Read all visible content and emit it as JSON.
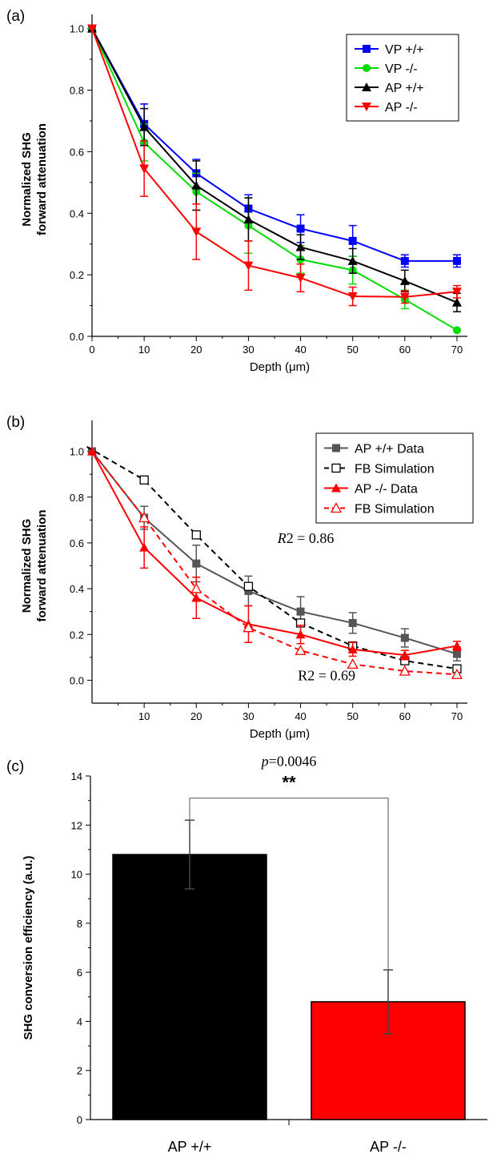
{
  "chart_data": [
    {
      "panel_label": "(a)",
      "type": "line",
      "xlabel": "Depth (μm)",
      "ylabel_line1": "Normalized SHG",
      "ylabel_line2": "forward attenuation",
      "xlim": [
        0,
        72
      ],
      "ylim": [
        0,
        1.02
      ],
      "xticks": [
        "0",
        "10",
        "20",
        "30",
        "40",
        "50",
        "60",
        "70"
      ],
      "yticks": [
        "0.0",
        "0.2",
        "0.4",
        "0.6",
        "0.8",
        "1.0"
      ],
      "legend_position": "top-right",
      "x": [
        0,
        10,
        20,
        30,
        40,
        50,
        60,
        70
      ],
      "series": [
        {
          "name": "VP +/+",
          "color": "#0000ff",
          "marker": "square",
          "dash": false,
          "values": [
            1.0,
            0.69,
            0.53,
            0.415,
            0.35,
            0.31,
            0.245,
            0.245
          ],
          "errors": [
            0,
            0.065,
            0.045,
            0.045,
            0.045,
            0.05,
            0.02,
            0.02
          ]
        },
        {
          "name": "VP -/-",
          "color": "#00dd00",
          "marker": "circle",
          "dash": false,
          "values": [
            1.0,
            0.63,
            0.47,
            0.36,
            0.25,
            0.215,
            0.12,
            0.02
          ],
          "errors": [
            0,
            0.06,
            0.06,
            0.09,
            0.045,
            0.045,
            0.03,
            0
          ]
        },
        {
          "name": "AP +/+",
          "color": "#000000",
          "marker": "triangle-up",
          "dash": false,
          "values": [
            1.0,
            0.68,
            0.49,
            0.38,
            0.29,
            0.245,
            0.18,
            0.11
          ],
          "errors": [
            0,
            0.06,
            0.08,
            0.07,
            0.04,
            0.04,
            0.035,
            0.03
          ]
        },
        {
          "name": "AP -/-",
          "color": "#ff0000",
          "marker": "triangle-down",
          "dash": false,
          "values": [
            1.0,
            0.545,
            0.34,
            0.23,
            0.19,
            0.13,
            0.128,
            0.145
          ],
          "errors": [
            0,
            0.09,
            0.09,
            0.08,
            0.045,
            0.03,
            0.02,
            0.02
          ]
        }
      ]
    },
    {
      "panel_label": "(b)",
      "type": "line",
      "xlabel": "Depth (μm)",
      "ylabel_line1": "Normalized SHG",
      "ylabel_line2": "forward attenuation",
      "xlim": [
        0,
        72
      ],
      "ylim": [
        -0.1,
        1.1
      ],
      "xticks": [
        "10",
        "20",
        "30",
        "40",
        "50",
        "60",
        "70"
      ],
      "yticks": [
        "0.0",
        "0.2",
        "0.4",
        "0.6",
        "0.8",
        "1.0"
      ],
      "legend_position": "top-right",
      "annotations": [
        {
          "prefix": "R",
          "text": "2 = 0.86",
          "x": 41,
          "y": 0.6,
          "italic": true
        },
        {
          "prefix": "R",
          "text": "2 = 0.69",
          "x": 45,
          "y": 0.0,
          "italic": false
        }
      ],
      "series": [
        {
          "name": "AP +/+ Data",
          "color": "#555555",
          "marker": "square-filled",
          "dash": false,
          "x": [
            0,
            10,
            20,
            30,
            40,
            50,
            60,
            70
          ],
          "values": [
            1.0,
            0.71,
            0.51,
            0.39,
            0.3,
            0.25,
            0.185,
            0.115
          ],
          "errors": [
            0,
            0.05,
            0.08,
            0.065,
            0.065,
            0.045,
            0.04,
            0.03
          ]
        },
        {
          "name": "FB Simulation",
          "color": "#000000",
          "marker": "square-open",
          "dash": true,
          "x": [
            -1,
            10,
            20,
            30,
            40,
            50,
            60,
            70
          ],
          "values": [
            1.02,
            0.875,
            0.635,
            0.41,
            0.25,
            0.15,
            0.085,
            0.05
          ],
          "errors": [
            0,
            0,
            0,
            0,
            0,
            0,
            0,
            0
          ]
        },
        {
          "name": "AP -/- Data",
          "color": "#ff0000",
          "marker": "triangle-filled",
          "dash": false,
          "x": [
            0,
            10,
            20,
            30,
            40,
            50,
            60,
            70
          ],
          "values": [
            1.0,
            0.58,
            0.36,
            0.245,
            0.2,
            0.135,
            0.11,
            0.15
          ],
          "errors": [
            0,
            0.09,
            0.09,
            0.08,
            0.04,
            0.03,
            0.02,
            0.02
          ]
        },
        {
          "name": "FB Simulation",
          "color": "#ff0000",
          "marker": "triangle-open",
          "dash": true,
          "x": [
            0,
            10,
            20,
            30,
            40,
            50,
            60,
            70
          ],
          "values": [
            1.0,
            0.71,
            0.4,
            0.23,
            0.13,
            0.07,
            0.04,
            0.025
          ],
          "errors": [
            0,
            0,
            0,
            0,
            0,
            0,
            0,
            0
          ]
        }
      ]
    },
    {
      "panel_label": "(c)",
      "type": "bar",
      "ylabel": "SHG conversion efficiency (a.u.)",
      "ylim": [
        0,
        14
      ],
      "yticks": [
        "0",
        "2",
        "4",
        "6",
        "8",
        "10",
        "12",
        "14"
      ],
      "categories": [
        "AP +/+",
        "AP -/-"
      ],
      "values": [
        10.8,
        4.8
      ],
      "errors": [
        1.4,
        1.3
      ],
      "colors": [
        "#000000",
        "#ff0000"
      ],
      "p_prefix": "p",
      "p_value_text": "=0.0046",
      "significance": "**"
    }
  ]
}
